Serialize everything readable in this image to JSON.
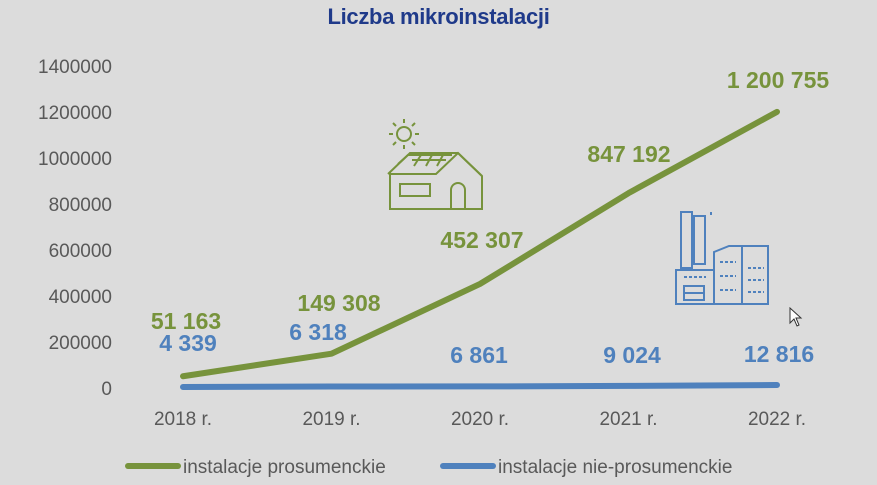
{
  "chart_data": {
    "type": "line",
    "title": "Liczba mikroinstalacji",
    "xlabel": "",
    "ylabel": "",
    "categories": [
      "2018 r.",
      "2019 r.",
      "2020 r.",
      "2021 r.",
      "2022 r."
    ],
    "ylim": [
      0,
      1400000
    ],
    "yticks": [
      "0",
      "200000",
      "400000",
      "600000",
      "800000",
      "1000000",
      "1200000",
      "1400000"
    ],
    "grid": false,
    "legend_position": "bottom",
    "series": [
      {
        "name": "instalacje prosumenckie",
        "color": "#77933c",
        "values": [
          51163,
          149308,
          452307,
          847192,
          1200755
        ],
        "labels": [
          "51 163",
          "149 308",
          "452 307",
          "847 192",
          "1 200 755"
        ]
      },
      {
        "name": "instalacje nie-prosumenckie",
        "color": "#4f81bd",
        "values": [
          4339,
          6318,
          6861,
          9024,
          12816
        ],
        "labels": [
          "4 339",
          "6 318",
          "6 861",
          "9 024",
          "12 816"
        ]
      }
    ],
    "icons": [
      "house-with-solar-panels-icon",
      "factory-icon"
    ]
  }
}
